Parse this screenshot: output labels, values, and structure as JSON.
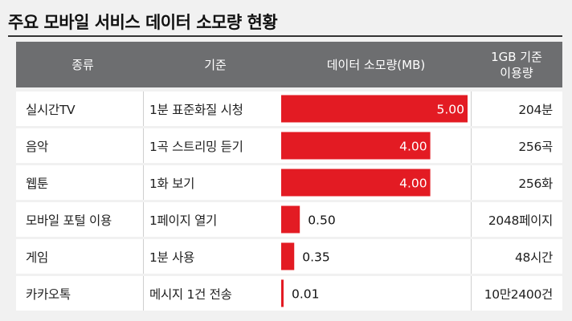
{
  "title": "주요 모바일 서비스 데이터 소모량 현황",
  "colors": {
    "header_bg": "#6d6e70",
    "bar": "#e31b23",
    "bar_edge": "#f08a8a"
  },
  "headers": [
    "종류",
    "기준",
    "데이터 소모량(MB)",
    "1GB 기준\n이용량"
  ],
  "chart_data": {
    "type": "bar",
    "orientation": "horizontal",
    "xlabel": "데이터 소모량(MB)",
    "xlim": [
      0,
      5
    ],
    "categories": [
      "실시간TV",
      "음악",
      "웹툰",
      "모바일 포털 이용",
      "게임",
      "카카오톡"
    ],
    "values": [
      5.0,
      4.0,
      4.0,
      0.5,
      0.35,
      0.01
    ],
    "value_labels": [
      "5.00",
      "4.00",
      "4.00",
      "0.50",
      "0.35",
      "0.01"
    ]
  },
  "rows": [
    {
      "type": "실시간TV",
      "basis": "1분 표준화질 시청",
      "usage": "204분"
    },
    {
      "type": "음악",
      "basis": "1곡 스트리밍 듣기",
      "usage": "256곡"
    },
    {
      "type": "웹툰",
      "basis": "1화 보기",
      "usage": "256화"
    },
    {
      "type": "모바일 포털 이용",
      "basis": "1페이지 열기",
      "usage": "2048페이지"
    },
    {
      "type": "게임",
      "basis": "1분 사용",
      "usage": "48시간"
    },
    {
      "type": "카카오톡",
      "basis": "메시지 1건 전송",
      "usage": "10만2400건"
    }
  ]
}
